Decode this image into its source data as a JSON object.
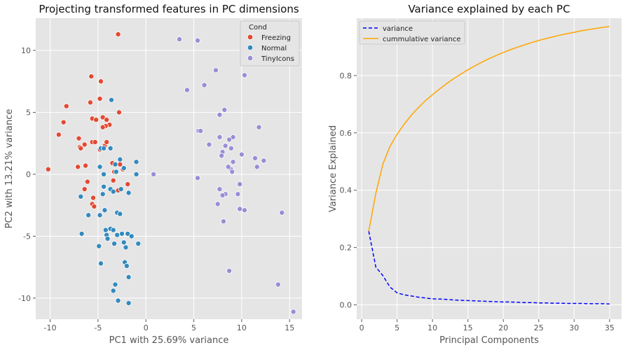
{
  "chart_data": [
    {
      "type": "scatter",
      "title": "Projecting transformed features in PC dimensions",
      "xlabel": "PC1 with 25.69% variance",
      "ylabel": "PC2 with 13.21% variance",
      "xlim": [
        -11.5,
        16.3
      ],
      "ylim": [
        -11.7,
        12.6
      ],
      "xticks": [
        -10,
        -5,
        0,
        5,
        10,
        15
      ],
      "yticks": [
        -10,
        -5,
        0,
        5,
        10
      ],
      "grid": true,
      "legend": {
        "title": "Cond",
        "placement": "top-right",
        "entries": [
          {
            "label": "Freezing",
            "color": "#E24A33"
          },
          {
            "label": "Normal",
            "color": "#348ABD"
          },
          {
            "label": "TinyIcons",
            "color": "#988ED5"
          }
        ]
      },
      "series": [
        {
          "name": "Freezing",
          "color": "#E24A33",
          "points": [
            [
              -2.9,
              11.3
            ],
            [
              -5.7,
              7.9
            ],
            [
              -4.7,
              7.5
            ],
            [
              -8.3,
              5.5
            ],
            [
              -5.8,
              5.8
            ],
            [
              -4.8,
              6.1
            ],
            [
              -8.6,
              4.2
            ],
            [
              -5.6,
              4.5
            ],
            [
              -4.5,
              4.6
            ],
            [
              -2.8,
              5.0
            ],
            [
              -5.2,
              4.4
            ],
            [
              -4.1,
              4.4
            ],
            [
              -3.8,
              4.0
            ],
            [
              -4.2,
              3.9
            ],
            [
              -4.5,
              3.8
            ],
            [
              -9.1,
              3.2
            ],
            [
              -7.0,
              2.9
            ],
            [
              -6.4,
              2.4
            ],
            [
              -5.6,
              2.6
            ],
            [
              -5.3,
              2.6
            ],
            [
              -4.3,
              2.3
            ],
            [
              -4.1,
              2.6
            ],
            [
              -6.9,
              2.2
            ],
            [
              -6.8,
              2.1
            ],
            [
              -4.8,
              2.0
            ],
            [
              -10.2,
              0.4
            ],
            [
              -7.1,
              0.6
            ],
            [
              -6.3,
              0.7
            ],
            [
              -3.5,
              0.9
            ],
            [
              -2.7,
              0.8
            ],
            [
              -3.3,
              0.2
            ],
            [
              -2.4,
              0.4
            ],
            [
              -6.1,
              -0.6
            ],
            [
              -3.4,
              -0.5
            ],
            [
              -1.9,
              -0.8
            ],
            [
              -6.4,
              -1.2
            ],
            [
              -2.9,
              -1.3
            ],
            [
              -5.5,
              -1.9
            ],
            [
              -5.6,
              -2.4
            ],
            [
              -5.4,
              -2.6
            ]
          ]
        },
        {
          "name": "Normal",
          "color": "#348ABD",
          "points": [
            [
              -3.6,
              6.0
            ],
            [
              -4.7,
              2.1
            ],
            [
              -4.4,
              2.1
            ],
            [
              -3.7,
              2.1
            ],
            [
              -2.7,
              1.2
            ],
            [
              -1.0,
              1.0
            ],
            [
              -3.2,
              0.8
            ],
            [
              -4.8,
              0.6
            ],
            [
              -2.3,
              0.5
            ],
            [
              -4.4,
              0.0
            ],
            [
              -3.1,
              0.2
            ],
            [
              -1.0,
              0.0
            ],
            [
              -6.8,
              -1.8
            ],
            [
              -4.4,
              -1.0
            ],
            [
              -3.7,
              -1.2
            ],
            [
              -4.5,
              -1.6
            ],
            [
              -3.4,
              -1.4
            ],
            [
              -2.6,
              -1.2
            ],
            [
              -1.8,
              -1.5
            ],
            [
              -6.0,
              -3.3
            ],
            [
              -4.3,
              -2.9
            ],
            [
              -4.8,
              -3.3
            ],
            [
              -3.0,
              -3.1
            ],
            [
              -2.7,
              -3.2
            ],
            [
              -3.7,
              -4.4
            ],
            [
              -3.4,
              -4.5
            ],
            [
              -6.7,
              -4.8
            ],
            [
              -4.2,
              -4.5
            ],
            [
              -4.1,
              -4.9
            ],
            [
              -3.0,
              -4.9
            ],
            [
              -2.5,
              -4.8
            ],
            [
              -1.9,
              -4.8
            ],
            [
              -1.5,
              -5.0
            ],
            [
              -4.0,
              -5.2
            ],
            [
              -3.3,
              -5.6
            ],
            [
              -2.3,
              -5.5
            ],
            [
              -0.8,
              -5.6
            ],
            [
              -4.9,
              -5.8
            ],
            [
              -2.1,
              -5.9
            ],
            [
              -4.7,
              -7.2
            ],
            [
              -2.2,
              -7.1
            ],
            [
              -2.0,
              -7.4
            ],
            [
              -1.8,
              -8.3
            ],
            [
              -3.2,
              -8.9
            ],
            [
              -3.4,
              -9.4
            ],
            [
              -2.9,
              -10.2
            ],
            [
              -1.8,
              -10.4
            ]
          ]
        },
        {
          "name": "TinyIcons",
          "color": "#988ED5",
          "points": [
            [
              3.5,
              10.9
            ],
            [
              5.4,
              10.8
            ],
            [
              7.3,
              8.4
            ],
            [
              10.3,
              8.0
            ],
            [
              6.1,
              7.2
            ],
            [
              4.3,
              6.8
            ],
            [
              8.2,
              5.2
            ],
            [
              7.7,
              4.8
            ],
            [
              5.5,
              3.5
            ],
            [
              5.7,
              3.5
            ],
            [
              11.8,
              3.8
            ],
            [
              7.7,
              3.0
            ],
            [
              9.1,
              3.0
            ],
            [
              8.7,
              2.8
            ],
            [
              6.6,
              2.4
            ],
            [
              8.3,
              2.3
            ],
            [
              8.9,
              2.1
            ],
            [
              8.0,
              1.8
            ],
            [
              7.9,
              1.5
            ],
            [
              10.0,
              1.6
            ],
            [
              11.4,
              1.3
            ],
            [
              12.3,
              1.1
            ],
            [
              9.1,
              1.0
            ],
            [
              8.9,
              0.4
            ],
            [
              11.6,
              0.6
            ],
            [
              8.6,
              0.6
            ],
            [
              9.0,
              0.2
            ],
            [
              0.8,
              0.0
            ],
            [
              5.4,
              -0.3
            ],
            [
              9.8,
              -0.8
            ],
            [
              7.7,
              -1.2
            ],
            [
              8.3,
              -1.6
            ],
            [
              9.6,
              -1.6
            ],
            [
              8.0,
              -1.7
            ],
            [
              7.5,
              -2.4
            ],
            [
              9.8,
              -2.8
            ],
            [
              10.3,
              -2.9
            ],
            [
              8.1,
              -3.8
            ],
            [
              14.2,
              -3.1
            ],
            [
              8.7,
              -7.8
            ],
            [
              13.8,
              -8.9
            ],
            [
              15.4,
              -11.1
            ]
          ]
        }
      ]
    },
    {
      "type": "line",
      "title": "Variance explained by each PC",
      "xlabel": "Principal Components",
      "ylabel": "Variance Explained",
      "xlim": [
        -0.7,
        36.7
      ],
      "ylim": [
        -0.05,
        1.0
      ],
      "xticks": [
        0,
        5,
        10,
        15,
        20,
        25,
        30,
        35
      ],
      "yticks": [
        0.0,
        0.2,
        0.4,
        0.6,
        0.8
      ],
      "grid": true,
      "legend": {
        "placement": "top-left"
      },
      "x": [
        1,
        2,
        3,
        4,
        5,
        6,
        7,
        8,
        9,
        10,
        11,
        12,
        13,
        14,
        15,
        16,
        17,
        18,
        19,
        20,
        21,
        22,
        23,
        24,
        25,
        26,
        27,
        28,
        29,
        30,
        31,
        32,
        33,
        34,
        35
      ],
      "series": [
        {
          "name": "variance",
          "color": "#0000FF",
          "style": "dashed",
          "values": [
            0.257,
            0.132,
            0.102,
            0.062,
            0.042,
            0.035,
            0.031,
            0.027,
            0.024,
            0.021,
            0.02,
            0.019,
            0.017,
            0.016,
            0.015,
            0.014,
            0.013,
            0.012,
            0.011,
            0.01,
            0.01,
            0.009,
            0.008,
            0.008,
            0.007,
            0.007,
            0.006,
            0.006,
            0.005,
            0.005,
            0.005,
            0.004,
            0.004,
            0.004,
            0.003
          ]
        },
        {
          "name": "cummulative variance",
          "color": "#FFA500",
          "style": "solid",
          "values": [
            0.257,
            0.389,
            0.491,
            0.553,
            0.595,
            0.63,
            0.661,
            0.688,
            0.712,
            0.733,
            0.753,
            0.772,
            0.789,
            0.805,
            0.82,
            0.834,
            0.847,
            0.859,
            0.87,
            0.88,
            0.89,
            0.899,
            0.907,
            0.915,
            0.922,
            0.929,
            0.935,
            0.941,
            0.946,
            0.951,
            0.956,
            0.96,
            0.964,
            0.968,
            0.971
          ]
        }
      ]
    }
  ]
}
